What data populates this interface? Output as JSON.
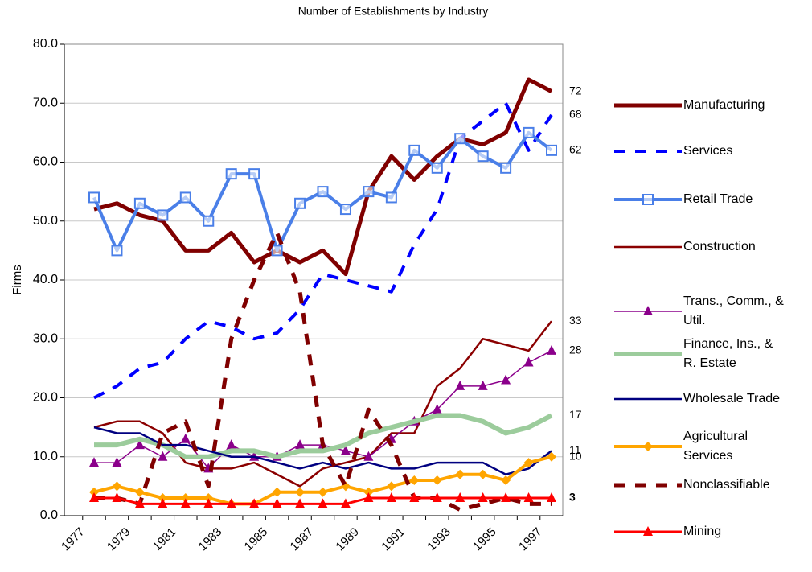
{
  "chart_data": {
    "type": "line",
    "title": "Number of Establishments by Industry",
    "y_label": "Firms",
    "categories": [
      "1977",
      null,
      "1979",
      null,
      "1981",
      null,
      "1983",
      null,
      "1985",
      null,
      "1987",
      null,
      "1989",
      null,
      "1991",
      null,
      "1993",
      null,
      "1995",
      null,
      "1997"
    ],
    "ylim": [
      0,
      80
    ],
    "yticks": [
      {
        "value": 0,
        "label": "0.0"
      },
      {
        "value": 10,
        "label": "10.0"
      },
      {
        "value": 20,
        "label": "20.0"
      },
      {
        "value": 30,
        "label": "30.0"
      },
      {
        "value": 40,
        "label": "40.0"
      },
      {
        "value": 50,
        "label": "50.0"
      },
      {
        "value": 60,
        "label": "60.0"
      },
      {
        "value": 70,
        "label": "70.0"
      },
      {
        "value": 80,
        "label": "80.0"
      }
    ],
    "grid": true,
    "legend": "right",
    "series": [
      {
        "name": "Manufacturing",
        "color": "#800000",
        "label_last": true,
        "values": [
          52,
          53,
          51,
          50,
          45,
          45,
          48,
          43,
          45,
          43,
          45,
          41,
          55,
          61,
          57,
          61,
          64,
          63,
          65,
          74,
          72
        ]
      },
      {
        "name": "Services",
        "color": "#0000ff",
        "dashed": true,
        "label_last": true,
        "values": [
          20,
          22,
          25,
          26,
          30,
          33,
          32,
          30,
          31,
          35,
          41,
          40,
          39,
          38,
          46,
          52,
          64,
          67,
          70,
          62,
          68
        ]
      },
      {
        "name": "Retail Trade",
        "color": "#4a7fe8",
        "marker": "square",
        "label_last": true,
        "values": [
          54,
          45,
          53,
          51,
          54,
          50,
          58,
          58,
          45,
          53,
          55,
          52,
          55,
          54,
          62,
          59,
          64,
          61,
          59,
          65,
          62
        ]
      },
      {
        "name": "Construction",
        "color": "#8b0000",
        "label_last": true,
        "values": [
          15,
          16,
          16,
          14,
          9,
          8,
          8,
          9,
          7,
          5,
          8,
          9,
          10,
          14,
          14,
          22,
          25,
          30,
          29,
          28,
          33
        ]
      },
      {
        "name": "Trans., Comm., & Util.",
        "color": "#8b008b",
        "marker": "triangle",
        "label_last": true,
        "values": [
          9,
          9,
          12,
          10,
          13,
          8,
          12,
          10,
          10,
          12,
          12,
          11,
          10,
          13,
          16,
          18,
          22,
          22,
          23,
          26,
          28
        ]
      },
      {
        "name": "Finance, Ins., & R. Estate",
        "color": "#9ccc9c",
        "label_last": true,
        "values": [
          12,
          12,
          13,
          12,
          10,
          10,
          11,
          11,
          10,
          11,
          11,
          12,
          14,
          15,
          16,
          17,
          17,
          16,
          14,
          15,
          17
        ]
      },
      {
        "name": "Wholesale Trade",
        "color": "#000080",
        "label_last": true,
        "values": [
          15,
          14,
          14,
          12,
          12,
          11,
          10,
          10,
          9,
          8,
          9,
          8,
          9,
          8,
          8,
          9,
          9,
          9,
          7,
          8,
          11
        ]
      },
      {
        "name": "Agricultural Services",
        "color": "#ffa500",
        "marker": "diamond",
        "label_last": true,
        "values": [
          4,
          5,
          4,
          3,
          3,
          3,
          2,
          2,
          4,
          4,
          4,
          5,
          4,
          5,
          6,
          6,
          7,
          7,
          6,
          9,
          10
        ]
      },
      {
        "name": "Nonclassifiable",
        "color": "#800000",
        "dashed": true,
        "values": [
          3,
          3,
          2,
          14,
          16,
          5,
          30,
          40,
          48,
          38,
          12,
          5,
          18,
          12,
          3,
          3,
          1,
          2,
          3,
          2,
          2
        ]
      },
      {
        "name": "Mining",
        "color": "#ff0000",
        "marker": "triangle",
        "label_last": true,
        "label_bold": true,
        "values": [
          3,
          3,
          2,
          2,
          2,
          2,
          2,
          2,
          2,
          2,
          2,
          2,
          3,
          3,
          3,
          3,
          3,
          3,
          3,
          3,
          3
        ]
      }
    ]
  }
}
